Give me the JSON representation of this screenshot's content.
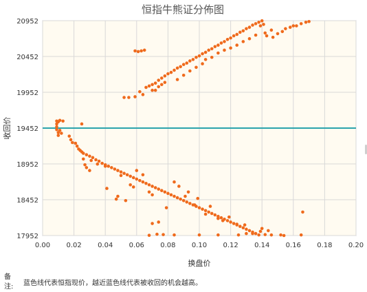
{
  "chart_data": {
    "type": "scatter",
    "title": "恒指牛熊证分佈图",
    "xlabel": "换盘价",
    "ylabel": "收回价",
    "xlim": [
      0,
      0.2
    ],
    "ylim": [
      17952,
      20952
    ],
    "x_ticks": [
      "0.00",
      "0.02",
      "0.04",
      "0.06",
      "0.08",
      "0.10",
      "0.12",
      "0.14",
      "0.16",
      "0.18",
      "0.20"
    ],
    "y_ticks": [
      "17952",
      "18452",
      "18952",
      "19452",
      "19952",
      "20452",
      "20952"
    ],
    "reference_line": {
      "value": 19452,
      "color": "#2ba3ad"
    },
    "grid": true,
    "plot_background": "#fffbf1",
    "series": [
      {
        "color": "#ef6a1c",
        "points": [
          [
            0.009,
            19430
          ],
          [
            0.009,
            19470
          ],
          [
            0.009,
            19510
          ],
          [
            0.009,
            19550
          ],
          [
            0.01,
            19350
          ],
          [
            0.01,
            19390
          ],
          [
            0.01,
            19540
          ],
          [
            0.011,
            19420
          ],
          [
            0.011,
            19560
          ],
          [
            0.012,
            19380
          ],
          [
            0.013,
            19550
          ],
          [
            0.025,
            19510
          ],
          [
            0.017,
            19340
          ],
          [
            0.018,
            19290
          ],
          [
            0.019,
            19250
          ],
          [
            0.021,
            19240
          ],
          [
            0.022,
            19200
          ],
          [
            0.023,
            19160
          ],
          [
            0.024,
            19140
          ],
          [
            0.025,
            19120
          ],
          [
            0.026,
            19100
          ],
          [
            0.028,
            19080
          ],
          [
            0.03,
            19060
          ],
          [
            0.032,
            19040
          ],
          [
            0.034,
            19010
          ],
          [
            0.036,
            18990
          ],
          [
            0.038,
            18960
          ],
          [
            0.04,
            18940
          ],
          [
            0.042,
            18920
          ],
          [
            0.044,
            18900
          ],
          [
            0.046,
            18880
          ],
          [
            0.048,
            18860
          ],
          [
            0.05,
            18840
          ],
          [
            0.052,
            18820
          ],
          [
            0.054,
            18800
          ],
          [
            0.056,
            18780
          ],
          [
            0.058,
            18760
          ],
          [
            0.06,
            18740
          ],
          [
            0.062,
            18720
          ],
          [
            0.064,
            18700
          ],
          [
            0.066,
            18680
          ],
          [
            0.068,
            18660
          ],
          [
            0.07,
            18640
          ],
          [
            0.072,
            18620
          ],
          [
            0.074,
            18600
          ],
          [
            0.076,
            18580
          ],
          [
            0.078,
            18560
          ],
          [
            0.08,
            18540
          ],
          [
            0.082,
            18520
          ],
          [
            0.084,
            18500
          ],
          [
            0.086,
            18480
          ],
          [
            0.088,
            18460
          ],
          [
            0.09,
            18440
          ],
          [
            0.092,
            18420
          ],
          [
            0.094,
            18400
          ],
          [
            0.096,
            18380
          ],
          [
            0.098,
            18360
          ],
          [
            0.1,
            18340
          ],
          [
            0.102,
            18320
          ],
          [
            0.104,
            18300
          ],
          [
            0.106,
            18280
          ],
          [
            0.108,
            18260
          ],
          [
            0.11,
            18240
          ],
          [
            0.112,
            18220
          ],
          [
            0.114,
            18200
          ],
          [
            0.116,
            18180
          ],
          [
            0.118,
            18160
          ],
          [
            0.12,
            18140
          ],
          [
            0.122,
            18120
          ],
          [
            0.124,
            18100
          ],
          [
            0.126,
            18080
          ],
          [
            0.128,
            18060
          ],
          [
            0.13,
            18040
          ],
          [
            0.132,
            18020
          ],
          [
            0.134,
            18000
          ],
          [
            0.136,
            17980
          ],
          [
            0.138,
            17960
          ],
          [
            0.026,
            19020
          ],
          [
            0.027,
            18940
          ],
          [
            0.028,
            18900
          ],
          [
            0.03,
            18860
          ],
          [
            0.031,
            19000
          ],
          [
            0.035,
            18950
          ],
          [
            0.04,
            18920
          ],
          [
            0.047,
            18460
          ],
          [
            0.048,
            18500
          ],
          [
            0.05,
            18790
          ],
          [
            0.056,
            18660
          ],
          [
            0.058,
            18630
          ],
          [
            0.06,
            18860
          ],
          [
            0.064,
            18800
          ],
          [
            0.068,
            18560
          ],
          [
            0.07,
            18520
          ],
          [
            0.073,
            17970
          ],
          [
            0.074,
            18140
          ],
          [
            0.077,
            17965
          ],
          [
            0.079,
            18340
          ],
          [
            0.084,
            18700
          ],
          [
            0.087,
            18640
          ],
          [
            0.091,
            18500
          ],
          [
            0.093,
            18560
          ],
          [
            0.097,
            18380
          ],
          [
            0.099,
            18470
          ],
          [
            0.104,
            18250
          ],
          [
            0.107,
            18360
          ],
          [
            0.112,
            18190
          ],
          [
            0.115,
            18160
          ],
          [
            0.119,
            18210
          ],
          [
            0.124,
            18110
          ],
          [
            0.129,
            18100
          ],
          [
            0.13,
            17980
          ],
          [
            0.14,
            18050
          ],
          [
            0.142,
            17965
          ],
          [
            0.146,
            17960
          ],
          [
            0.152,
            17960
          ],
          [
            0.154,
            17952
          ],
          [
            0.165,
            17960
          ],
          [
            0.166,
            18280
          ],
          [
            0.139,
            18010
          ],
          [
            0.144,
            18020
          ],
          [
            0.134,
            17980
          ],
          [
            0.125,
            17960
          ],
          [
            0.112,
            17960
          ],
          [
            0.1,
            17960
          ],
          [
            0.084,
            17960
          ],
          [
            0.07,
            18120
          ],
          [
            0.068,
            17955
          ],
          [
            0.053,
            18440
          ],
          [
            0.041,
            18610
          ],
          [
            0.052,
            19880
          ],
          [
            0.055,
            19880
          ],
          [
            0.059,
            19890
          ],
          [
            0.062,
            19960
          ],
          [
            0.064,
            19920
          ],
          [
            0.066,
            20020
          ],
          [
            0.068,
            20040
          ],
          [
            0.07,
            20060
          ],
          [
            0.072,
            20080
          ],
          [
            0.074,
            20120
          ],
          [
            0.076,
            20150
          ],
          [
            0.078,
            20180
          ],
          [
            0.08,
            20210
          ],
          [
            0.082,
            20230
          ],
          [
            0.084,
            20260
          ],
          [
            0.086,
            20290
          ],
          [
            0.088,
            20310
          ],
          [
            0.09,
            20340
          ],
          [
            0.092,
            20360
          ],
          [
            0.094,
            20390
          ],
          [
            0.096,
            20410
          ],
          [
            0.098,
            20440
          ],
          [
            0.1,
            20460
          ],
          [
            0.102,
            20490
          ],
          [
            0.104,
            20510
          ],
          [
            0.106,
            20540
          ],
          [
            0.108,
            20560
          ],
          [
            0.11,
            20590
          ],
          [
            0.112,
            20610
          ],
          [
            0.114,
            20640
          ],
          [
            0.116,
            20660
          ],
          [
            0.118,
            20690
          ],
          [
            0.12,
            20710
          ],
          [
            0.122,
            20740
          ],
          [
            0.124,
            20760
          ],
          [
            0.126,
            20790
          ],
          [
            0.128,
            20810
          ],
          [
            0.13,
            20840
          ],
          [
            0.132,
            20860
          ],
          [
            0.134,
            20890
          ],
          [
            0.136,
            20910
          ],
          [
            0.138,
            20930
          ],
          [
            0.059,
            20530
          ],
          [
            0.061,
            20520
          ],
          [
            0.063,
            20530
          ],
          [
            0.065,
            20540
          ],
          [
            0.07,
            19980
          ],
          [
            0.072,
            19980
          ],
          [
            0.074,
            20030
          ],
          [
            0.076,
            20060
          ],
          [
            0.078,
            20090
          ],
          [
            0.086,
            20130
          ],
          [
            0.09,
            20190
          ],
          [
            0.094,
            20250
          ],
          [
            0.098,
            20300
          ],
          [
            0.102,
            20350
          ],
          [
            0.104,
            20410
          ],
          [
            0.108,
            20440
          ],
          [
            0.112,
            20500
          ],
          [
            0.116,
            20540
          ],
          [
            0.12,
            20570
          ],
          [
            0.124,
            20610
          ],
          [
            0.128,
            20660
          ],
          [
            0.132,
            20700
          ],
          [
            0.136,
            20750
          ],
          [
            0.139,
            20880
          ],
          [
            0.14,
            20950
          ],
          [
            0.141,
            20900
          ],
          [
            0.143,
            20740
          ],
          [
            0.147,
            20720
          ],
          [
            0.15,
            20770
          ],
          [
            0.153,
            20800
          ],
          [
            0.16,
            20880
          ],
          [
            0.162,
            20880
          ],
          [
            0.165,
            20910
          ],
          [
            0.168,
            20930
          ],
          [
            0.17,
            20940
          ],
          [
            0.146,
            20820
          ],
          [
            0.142,
            20780
          ],
          [
            0.158,
            20860
          ],
          [
            0.155,
            20840
          ]
        ]
      }
    ]
  },
  "note": {
    "label": "备注:",
    "text": "蓝色线代表恒指现价，越近蓝色线代表被收回的机会越高。"
  }
}
